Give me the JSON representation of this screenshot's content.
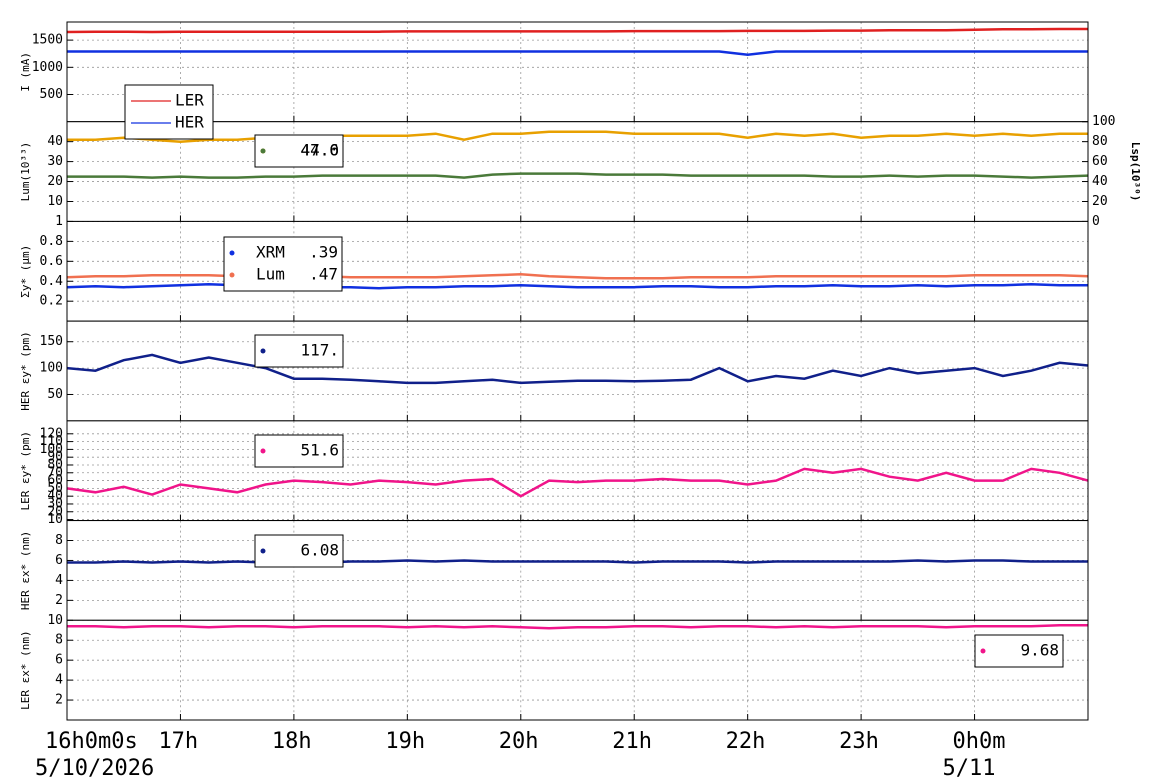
{
  "chart_data": [
    {
      "type": "line",
      "ylabel": "I (mA)",
      "x": [
        16,
        16.25,
        16.5,
        16.75,
        17,
        17.25,
        17.5,
        17.75,
        18,
        18.25,
        18.5,
        18.75,
        19,
        19.25,
        19.5,
        19.75,
        20,
        20.25,
        20.5,
        20.75,
        21,
        21.25,
        21.5,
        21.75,
        22,
        22.25,
        22.5,
        22.75,
        23,
        23.25,
        23.5,
        23.75,
        24,
        24.25,
        24.5,
        24.75,
        25
      ],
      "ylim": [
        0,
        1833
      ],
      "yticks": [
        500,
        1000,
        1500
      ],
      "grid": true,
      "series": [
        {
          "name": "LER",
          "color": "#e02020",
          "values": [
            1650,
            1655,
            1655,
            1650,
            1655,
            1655,
            1655,
            1655,
            1655,
            1655,
            1655,
            1655,
            1660,
            1660,
            1660,
            1660,
            1660,
            1660,
            1660,
            1660,
            1665,
            1665,
            1665,
            1665,
            1670,
            1670,
            1670,
            1675,
            1675,
            1680,
            1680,
            1680,
            1690,
            1700,
            1700,
            1705,
            1705
          ]
        },
        {
          "name": "HER",
          "color": "#1030e0",
          "values": [
            1290,
            1290,
            1290,
            1290,
            1290,
            1290,
            1290,
            1290,
            1290,
            1290,
            1290,
            1290,
            1290,
            1290,
            1290,
            1290,
            1290,
            1290,
            1290,
            1290,
            1290,
            1290,
            1290,
            1290,
            1230,
            1290,
            1290,
            1290,
            1290,
            1290,
            1290,
            1290,
            1290,
            1290,
            1290,
            1290,
            1290
          ]
        }
      ]
    },
    {
      "type": "line",
      "ylabel": "Lum(10³³)",
      "y2label": "Lsp(10³⁰)",
      "x": [
        16,
        16.25,
        16.5,
        16.75,
        17,
        17.25,
        17.5,
        17.75,
        18,
        18.25,
        18.5,
        18.75,
        19,
        19.25,
        19.5,
        19.75,
        20,
        20.25,
        20.5,
        20.75,
        21,
        21.25,
        21.5,
        21.75,
        22,
        22.25,
        22.5,
        22.75,
        23,
        23.25,
        23.5,
        23.75,
        24,
        24.25,
        24.5,
        24.75,
        25
      ],
      "ylim": [
        0,
        50
      ],
      "yticks": [
        10,
        20,
        30,
        40
      ],
      "y2lim": [
        0,
        100
      ],
      "y2ticks": [
        0,
        20,
        40,
        60,
        80,
        100
      ],
      "grid": true,
      "series": [
        {
          "color": "#e8a000",
          "readout": "47.6",
          "values": [
            41,
            41,
            42,
            41,
            40,
            41,
            41,
            42,
            42,
            43,
            43,
            43,
            43,
            44,
            41,
            44,
            44,
            45,
            45,
            45,
            44,
            44,
            44,
            44,
            42,
            44,
            43,
            44,
            42,
            43,
            43,
            44,
            43,
            44,
            43,
            44,
            44
          ]
        },
        {
          "color": "#4a7a3a",
          "readout": "44.0",
          "axis": "y2",
          "values": [
            45,
            45,
            45,
            44,
            45,
            44,
            44,
            45,
            45,
            46,
            46,
            46,
            46,
            46,
            44,
            47,
            48,
            48,
            48,
            47,
            47,
            47,
            46,
            46,
            46,
            46,
            46,
            45,
            45,
            46,
            45,
            46,
            46,
            45,
            44,
            45,
            46
          ]
        }
      ]
    },
    {
      "type": "line",
      "ylabel": "Σy* (μm)",
      "x": [
        16,
        16.25,
        16.5,
        16.75,
        17,
        17.25,
        17.5,
        17.75,
        18,
        18.25,
        18.5,
        18.75,
        19,
        19.25,
        19.5,
        19.75,
        20,
        20.25,
        20.5,
        20.75,
        21,
        21.25,
        21.5,
        21.75,
        22,
        22.25,
        22.5,
        22.75,
        23,
        23.25,
        23.5,
        23.75,
        24,
        24.25,
        24.5,
        24.75,
        25
      ],
      "ylim": [
        0,
        1
      ],
      "yticks": [
        0.2,
        0.4,
        0.6,
        0.8,
        1
      ],
      "grid": true,
      "series": [
        {
          "name": "XRM",
          "readout": ".39",
          "color": "#1030e0",
          "values": [
            0.34,
            0.35,
            0.34,
            0.35,
            0.36,
            0.37,
            0.36,
            0.35,
            0.35,
            0.34,
            0.34,
            0.33,
            0.34,
            0.34,
            0.35,
            0.35,
            0.36,
            0.35,
            0.34,
            0.34,
            0.34,
            0.35,
            0.35,
            0.34,
            0.34,
            0.35,
            0.35,
            0.36,
            0.35,
            0.35,
            0.36,
            0.35,
            0.36,
            0.36,
            0.37,
            0.36,
            0.36
          ]
        },
        {
          "name": "Lum",
          "readout": ".47",
          "color": "#f07050",
          "values": [
            0.44,
            0.45,
            0.45,
            0.46,
            0.46,
            0.46,
            0.45,
            0.45,
            0.46,
            0.45,
            0.44,
            0.44,
            0.44,
            0.44,
            0.45,
            0.46,
            0.47,
            0.45,
            0.44,
            0.43,
            0.43,
            0.43,
            0.44,
            0.44,
            0.44,
            0.45,
            0.45,
            0.45,
            0.45,
            0.45,
            0.45,
            0.45,
            0.46,
            0.46,
            0.46,
            0.46,
            0.45
          ]
        }
      ]
    },
    {
      "type": "line",
      "ylabel": "HER εy* (pm)",
      "x": [
        16,
        16.25,
        16.5,
        16.75,
        17,
        17.25,
        17.5,
        17.75,
        18,
        18.25,
        18.5,
        18.75,
        19,
        19.25,
        19.5,
        19.75,
        20,
        20.25,
        20.5,
        20.75,
        21,
        21.25,
        21.5,
        21.75,
        22,
        22.25,
        22.5,
        22.75,
        23,
        23.25,
        23.5,
        23.75,
        24,
        24.25,
        24.5,
        24.75,
        25
      ],
      "ylim": [
        0,
        189
      ],
      "yticks": [
        50,
        100,
        150
      ],
      "grid": true,
      "series": [
        {
          "color": "#10208a",
          "readout": "117.",
          "values": [
            100,
            95,
            115,
            125,
            110,
            120,
            110,
            100,
            80,
            80,
            78,
            75,
            72,
            72,
            75,
            78,
            72,
            74,
            76,
            76,
            75,
            76,
            78,
            100,
            75,
            85,
            80,
            95,
            85,
            100,
            90,
            95,
            100,
            85,
            95,
            110,
            105
          ]
        }
      ]
    },
    {
      "type": "line",
      "ylabel": "LER εy* (pm)",
      "x": [
        16,
        16.25,
        16.5,
        16.75,
        17,
        17.25,
        17.5,
        17.75,
        18,
        18.25,
        18.5,
        18.75,
        19,
        19.25,
        19.5,
        19.75,
        20,
        20.25,
        20.5,
        20.75,
        21,
        21.25,
        21.5,
        21.75,
        22,
        22.25,
        22.5,
        22.75,
        23,
        23.25,
        23.5,
        23.75,
        24,
        24.25,
        24.5,
        24.75,
        25
      ],
      "ylim": [
        8.7,
        136.6
      ],
      "yticks": [
        10,
        20,
        30,
        40,
        50,
        60,
        70,
        80,
        90,
        100,
        110,
        120
      ],
      "grid": true,
      "series": [
        {
          "color": "#f0148a",
          "readout": "51.6",
          "values": [
            50,
            45,
            52,
            42,
            55,
            50,
            45,
            55,
            60,
            58,
            55,
            60,
            58,
            55,
            60,
            62,
            40,
            60,
            58,
            60,
            60,
            62,
            60,
            60,
            55,
            60,
            75,
            70,
            75,
            65,
            60,
            70,
            60,
            60,
            75,
            70,
            60
          ]
        }
      ]
    },
    {
      "type": "line",
      "ylabel": "HER εx* (nm)",
      "x": [
        16,
        16.25,
        16.5,
        16.75,
        17,
        17.25,
        17.5,
        17.75,
        18,
        18.25,
        18.5,
        18.75,
        19,
        19.25,
        19.5,
        19.75,
        20,
        20.25,
        20.5,
        20.75,
        21,
        21.25,
        21.5,
        21.75,
        22,
        22.25,
        22.5,
        22.75,
        23,
        23.25,
        23.5,
        23.75,
        24,
        24.25,
        24.5,
        24.75,
        25
      ],
      "ylim": [
        0,
        10
      ],
      "yticks": [
        2,
        4,
        6,
        8
      ],
      "grid": true,
      "series": [
        {
          "color": "#10208a",
          "readout": "6.08",
          "values": [
            5.8,
            5.8,
            5.9,
            5.8,
            5.9,
            5.8,
            5.9,
            5.8,
            5.8,
            5.8,
            5.9,
            5.9,
            6.0,
            5.9,
            6.0,
            5.9,
            5.9,
            5.9,
            5.9,
            5.9,
            5.8,
            5.9,
            5.9,
            5.9,
            5.8,
            5.9,
            5.9,
            5.9,
            5.9,
            5.9,
            6.0,
            5.9,
            6.0,
            6.0,
            5.9,
            5.9,
            5.9
          ]
        }
      ]
    },
    {
      "type": "line",
      "ylabel": "LER εx* (nm)",
      "x": [
        16,
        16.25,
        16.5,
        16.75,
        17,
        17.25,
        17.5,
        17.75,
        18,
        18.25,
        18.5,
        18.75,
        19,
        19.25,
        19.5,
        19.75,
        20,
        20.25,
        20.5,
        20.75,
        21,
        21.25,
        21.5,
        21.75,
        22,
        22.25,
        22.5,
        22.75,
        23,
        23.25,
        23.5,
        23.75,
        24,
        24.25,
        24.5,
        24.75,
        25
      ],
      "ylim": [
        0,
        10
      ],
      "yticks": [
        2,
        4,
        6,
        8,
        10
      ],
      "grid": true,
      "xlim": [
        16,
        25
      ],
      "xticks": [
        {
          "value": 16,
          "label": "16h0m0s"
        },
        {
          "value": 17,
          "label": "17h"
        },
        {
          "value": 18,
          "label": "18h"
        },
        {
          "value": 19,
          "label": "19h"
        },
        {
          "value": 20,
          "label": "20h"
        },
        {
          "value": 21,
          "label": "21h"
        },
        {
          "value": 22,
          "label": "22h"
        },
        {
          "value": 23,
          "label": "23h"
        },
        {
          "value": 24,
          "label": "0h0m"
        }
      ],
      "dates": [
        {
          "value": 16,
          "label": "5/10/2026"
        },
        {
          "value": 24,
          "label": "5/11"
        }
      ],
      "series": [
        {
          "color": "#f0148a",
          "readout": "9.68",
          "values": [
            9.4,
            9.4,
            9.3,
            9.4,
            9.4,
            9.3,
            9.4,
            9.4,
            9.3,
            9.4,
            9.4,
            9.4,
            9.3,
            9.4,
            9.3,
            9.4,
            9.3,
            9.2,
            9.3,
            9.3,
            9.4,
            9.4,
            9.3,
            9.4,
            9.4,
            9.3,
            9.4,
            9.3,
            9.4,
            9.4,
            9.4,
            9.3,
            9.4,
            9.4,
            9.4,
            9.5,
            9.5
          ]
        }
      ]
    }
  ]
}
